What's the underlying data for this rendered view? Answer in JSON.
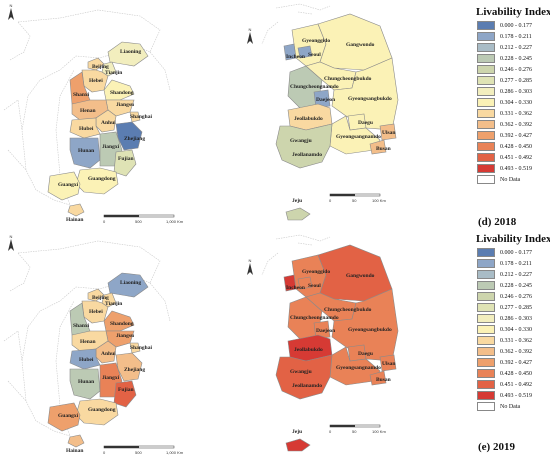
{
  "legend": {
    "title": "Livability Index",
    "classes": [
      {
        "range": "0.000 - 0.177",
        "color": "#5b7db1"
      },
      {
        "range": "0.178 - 0.211",
        "color": "#8ea6c7"
      },
      {
        "range": "0.212 - 0.227",
        "color": "#a9bcc6"
      },
      {
        "range": "0.228 - 0.245",
        "color": "#bccab4"
      },
      {
        "range": "0.246 - 0.276",
        "color": "#cdd5ad"
      },
      {
        "range": "0.277 - 0.285",
        "color": "#dfe3b5"
      },
      {
        "range": "0.286 - 0.303",
        "color": "#f2eebe"
      },
      {
        "range": "0.304 - 0.330",
        "color": "#fbf2b6"
      },
      {
        "range": "0.331 - 0.362",
        "color": "#f9d9a1"
      },
      {
        "range": "0.362 - 0.392",
        "color": "#f3be8a"
      },
      {
        "range": "0.392 - 0.427",
        "color": "#eea06c"
      },
      {
        "range": "0.428 - 0.450",
        "color": "#e98257"
      },
      {
        "range": "0.451 - 0.492",
        "color": "#e26245"
      },
      {
        "range": "0.493 - 0.519",
        "color": "#d63a34"
      },
      {
        "range": "No Data",
        "color": "#ffffff"
      }
    ]
  },
  "captions": {
    "top": "(d) 2018",
    "bottom": "(e) 2019"
  },
  "north_label": "N",
  "scale_china": {
    "zero": "0",
    "mid": "500",
    "end": "1,000 Km"
  },
  "scale_korea": {
    "zero": "0",
    "mid": "50",
    "end": "100 Km"
  },
  "maps": {
    "y2018": {
      "china": [
        {
          "name": "Liaoning",
          "color": "#f2eebe"
        },
        {
          "name": "Beijing",
          "color": "#f9d9a1"
        },
        {
          "name": "Tianjin",
          "color": "#f2eebe"
        },
        {
          "name": "Hebei",
          "color": "#f9d9a1"
        },
        {
          "name": "Shanxi",
          "color": "#eea06c"
        },
        {
          "name": "Shandong",
          "color": "#fbf2b6"
        },
        {
          "name": "Jiangsu",
          "color": "#f9d9a1"
        },
        {
          "name": "Henan",
          "color": "#f3be8a"
        },
        {
          "name": "Anhui",
          "color": "#f9d9a1"
        },
        {
          "name": "Shanghai",
          "color": "#f9d9a1"
        },
        {
          "name": "Hubei",
          "color": "#f9d9a1"
        },
        {
          "name": "Zhejiang",
          "color": "#5b7db1"
        },
        {
          "name": "Hunan",
          "color": "#8ea6c7"
        },
        {
          "name": "Jiangxi",
          "color": "#bccab4"
        },
        {
          "name": "Fujian",
          "color": "#dfe3b5"
        },
        {
          "name": "Guangdong",
          "color": "#fbf2b6"
        },
        {
          "name": "Guangxi",
          "color": "#fbf2b6"
        },
        {
          "name": "Hainan",
          "color": "#f9d9a1"
        }
      ],
      "korea": [
        {
          "name": "Gyeonggido",
          "color": "#fbf2b6"
        },
        {
          "name": "Incheon",
          "color": "#8ea6c7"
        },
        {
          "name": "Seoul",
          "color": "#8ea6c7"
        },
        {
          "name": "Gangwondo",
          "color": "#fbf2b6"
        },
        {
          "name": "Chungcheongnamdo",
          "color": "#bccab4"
        },
        {
          "name": "Chungcheongbukdo",
          "color": "#fbf2b6"
        },
        {
          "name": "Daejeon",
          "color": "#8ea6c7"
        },
        {
          "name": "Gyeongsangbukdo",
          "color": "#fbf2b6"
        },
        {
          "name": "Jeollabukdo",
          "color": "#f9d9a1"
        },
        {
          "name": "Daegu",
          "color": "#fbf2b6"
        },
        {
          "name": "Gyeongsangnamdo",
          "color": "#fbf2b6"
        },
        {
          "name": "Ulsan",
          "color": "#f3be8a"
        },
        {
          "name": "Gwangju",
          "color": "#bccab4"
        },
        {
          "name": "Busan",
          "color": "#f3be8a"
        },
        {
          "name": "Jeollanamdo",
          "color": "#cdd5ad"
        },
        {
          "name": "Jeju",
          "color": "#cdd5ad"
        }
      ]
    },
    "y2019": {
      "china": [
        {
          "name": "Liaoning",
          "color": "#8ea6c7"
        },
        {
          "name": "Beijing",
          "color": "#f9d9a1"
        },
        {
          "name": "Tianjin",
          "color": "#f9d9a1"
        },
        {
          "name": "Hebei",
          "color": "#f9d9a1"
        },
        {
          "name": "Shanxi",
          "color": "#bccab4"
        },
        {
          "name": "Shandong",
          "color": "#eea06c"
        },
        {
          "name": "Jiangsu",
          "color": "#eea06c"
        },
        {
          "name": "Henan",
          "color": "#f9d9a1"
        },
        {
          "name": "Anhui",
          "color": "#f3be8a"
        },
        {
          "name": "Shanghai",
          "color": "#f9d9a1"
        },
        {
          "name": "Hubei",
          "color": "#8ea6c7"
        },
        {
          "name": "Zhejiang",
          "color": "#f3be8a"
        },
        {
          "name": "Hunan",
          "color": "#bccab4"
        },
        {
          "name": "Jiangxi",
          "color": "#e98257"
        },
        {
          "name": "Fujian",
          "color": "#e26245"
        },
        {
          "name": "Guangdong",
          "color": "#f9d9a1"
        },
        {
          "name": "Guangxi",
          "color": "#eea06c"
        },
        {
          "name": "Hainan",
          "color": "#f3be8a"
        }
      ],
      "korea": [
        {
          "name": "Gyeonggido",
          "color": "#e98257"
        },
        {
          "name": "Incheon",
          "color": "#d63a34"
        },
        {
          "name": "Seoul",
          "color": "#e98257"
        },
        {
          "name": "Gangwondo",
          "color": "#e26245"
        },
        {
          "name": "Chungcheongnamdo",
          "color": "#e98257"
        },
        {
          "name": "Chungcheongbukdo",
          "color": "#e98257"
        },
        {
          "name": "Daejeon",
          "color": "#e98257"
        },
        {
          "name": "Gyeongsangbukdo",
          "color": "#e98257"
        },
        {
          "name": "Jeollabukdo",
          "color": "#d63a34"
        },
        {
          "name": "Daegu",
          "color": "#e98257"
        },
        {
          "name": "Gyeongsangnamdo",
          "color": "#e98257"
        },
        {
          "name": "Ulsan",
          "color": "#e98257"
        },
        {
          "name": "Gwangju",
          "color": "#e26245"
        },
        {
          "name": "Busan",
          "color": "#e98257"
        },
        {
          "name": "Jeollanamdo",
          "color": "#e26245"
        },
        {
          "name": "Jeju",
          "color": "#d63a34"
        }
      ]
    }
  }
}
